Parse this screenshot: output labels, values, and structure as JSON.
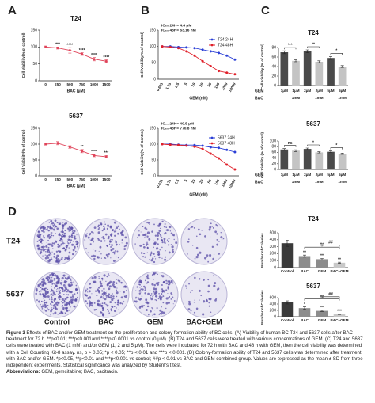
{
  "panel_labels": [
    "A",
    "B",
    "C",
    "D"
  ],
  "chart_data": [
    {
      "type": "line",
      "title": "T24",
      "xlabel": "BAC (μM)",
      "ylabel": "Cell Viability(% of control)",
      "categories": [
        "0",
        "250",
        "500",
        "750",
        "1000",
        "1500"
      ],
      "series": [
        {
          "color": "#e0445a",
          "values": [
            100,
            97,
            90,
            79,
            64,
            58
          ],
          "errors": [
            3,
            3,
            8,
            4,
            5,
            4
          ]
        }
      ],
      "ylim": [
        0,
        150
      ],
      "yticks": [
        0,
        50,
        100,
        150
      ],
      "point_labels": [
        null,
        "***",
        "****",
        "****",
        "****",
        "****"
      ]
    },
    {
      "type": "line",
      "title": "5637",
      "xlabel": "BAC (μM)",
      "ylabel": "Cell Viability(% of control)",
      "categories": [
        "0",
        "250",
        "500",
        "750",
        "1000",
        "1500"
      ],
      "series": [
        {
          "color": "#e0445a",
          "values": [
            100,
            103,
            91,
            78,
            64,
            60
          ],
          "errors": [
            3,
            5,
            4,
            5,
            4,
            4
          ]
        }
      ],
      "ylim": [
        0,
        150
      ],
      "yticks": [
        0,
        50,
        100,
        150
      ],
      "point_labels": [
        null,
        null,
        null,
        "**",
        "****",
        "***"
      ]
    },
    {
      "type": "line",
      "xlabel": "GEM (nM)",
      "ylabel": "Cell Viability(% of Control)",
      "annotations": [
        "IC₅₀ 24H= 4.4 μM",
        "IC₅₀ 48H= 63.16 nM"
      ],
      "categories": [
        "0.625",
        "1.25",
        "2.5",
        "5",
        "10",
        "20",
        "50",
        "100",
        "1000",
        "10000"
      ],
      "series": [
        {
          "name": "T24 24H",
          "color": "#2b3fd6",
          "values": [
            100,
            100,
            98,
            97,
            95,
            90,
            85,
            80,
            72,
            60
          ]
        },
        {
          "name": "T24 48H",
          "color": "#e0202a",
          "values": [
            100,
            98,
            95,
            85,
            72,
            55,
            40,
            25,
            20,
            15
          ]
        }
      ],
      "ylim": [
        0,
        150
      ],
      "yticks": [
        0,
        50,
        100,
        150
      ]
    },
    {
      "type": "line",
      "xlabel": "GEM (nM)",
      "ylabel": "Cell Viability(% of Control)",
      "annotations": [
        "IC₅₀ 24H= 40.5 μM",
        "IC₅₀ 48H= 770.8 nM"
      ],
      "categories": [
        "0.625",
        "1.25",
        "2.5",
        "5",
        "10",
        "20",
        "50",
        "100",
        "1000",
        "10000"
      ],
      "series": [
        {
          "name": "5637 24H",
          "color": "#2b3fd6",
          "values": [
            100,
            100,
            98,
            97,
            97,
            95,
            90,
            88,
            82,
            75
          ]
        },
        {
          "name": "5637 48H",
          "color": "#e0202a",
          "values": [
            100,
            98,
            97,
            95,
            92,
            85,
            70,
            55,
            35,
            20
          ]
        }
      ],
      "ylim": [
        0,
        150
      ],
      "yticks": [
        0,
        50,
        100,
        150
      ]
    },
    {
      "type": "bar",
      "title": "T24",
      "ylabel": "Cell Viability (% of control)",
      "categories": [
        "1μM",
        "1μM",
        "2μM",
        "2μM",
        "5μM",
        "5μM"
      ],
      "rows": [
        {
          "name": "GEM",
          "labels": [
            "1μM",
            "1μM",
            "2μM",
            "2μM",
            "5μM",
            "5μM"
          ]
        },
        {
          "name": "BAC",
          "labels": [
            null,
            "1mM",
            null,
            "1mM",
            null,
            "1mM"
          ]
        }
      ],
      "colors": [
        "#4a4a4a",
        "#c4c4c4",
        "#4a4a4a",
        "#c4c4c4",
        "#4a4a4a",
        "#c4c4c4"
      ],
      "series": [
        {
          "values": [
            70,
            52,
            72,
            50,
            58,
            40
          ],
          "errors": [
            3,
            2,
            3,
            2,
            3,
            2
          ]
        }
      ],
      "ylim": [
        0,
        80
      ],
      "yticks": [
        0,
        20,
        40,
        60,
        80
      ],
      "bracket_labels": [
        "***",
        "**",
        "*"
      ]
    },
    {
      "type": "bar",
      "title": "5637",
      "ylabel": "Cell Viability (% of control)",
      "categories": [
        "1μM",
        "1μM",
        "2μM",
        "2μM",
        "5μM",
        "5μM"
      ],
      "rows": [
        {
          "name": "GEM",
          "labels": [
            "1μM",
            "1μM",
            "2μM",
            "2μM",
            "5μM",
            "5μM"
          ]
        },
        {
          "name": "BAC",
          "labels": [
            null,
            "1mM",
            null,
            "1mM",
            null,
            "1mM"
          ]
        }
      ],
      "colors": [
        "#4a4a4a",
        "#c4c4c4",
        "#4a4a4a",
        "#c4c4c4",
        "#4a4a4a",
        "#c4c4c4"
      ],
      "series": [
        {
          "values": [
            70,
            66,
            72,
            60,
            62,
            55
          ],
          "errors": [
            3,
            3,
            3,
            2,
            3,
            2
          ]
        }
      ],
      "ylim": [
        0,
        100
      ],
      "yticks": [
        0,
        20,
        40,
        60,
        80,
        100
      ],
      "bracket_labels": [
        "ns",
        "*",
        "*"
      ]
    },
    {
      "type": "bar",
      "title": "T24",
      "ylabel": "Number of Colonies",
      "categories": [
        "Control",
        "BAC",
        "GEM",
        "BAC+GEM"
      ],
      "colors": [
        "#3a3a3a",
        "#8c8c8c",
        "#8c8c8c",
        "#c8c8c8"
      ],
      "series": [
        {
          "values": [
            350,
            165,
            120,
            70
          ],
          "errors": [
            45,
            15,
            12,
            8
          ]
        }
      ],
      "ylim": [
        0,
        500
      ],
      "yticks": [
        0,
        100,
        200,
        300,
        400,
        500
      ],
      "point_labels": [
        null,
        "**",
        "**",
        "**"
      ],
      "bracket_labels": [
        "##",
        "##"
      ]
    },
    {
      "type": "bar",
      "title": "5637",
      "ylabel": "Number of Colonies",
      "categories": [
        "Control",
        "BAC",
        "GEM",
        "BAC+GEM"
      ],
      "colors": [
        "#3a3a3a",
        "#8c8c8c",
        "#8c8c8c",
        "#c8c8c8"
      ],
      "series": [
        {
          "values": [
            450,
            270,
            185,
            80
          ],
          "errors": [
            50,
            40,
            20,
            10
          ]
        }
      ],
      "ylim": [
        0,
        600
      ],
      "yticks": [
        0,
        200,
        400,
        600
      ],
      "point_labels": [
        null,
        "*",
        "**",
        "***"
      ],
      "bracket_labels": [
        "##",
        "##"
      ]
    }
  ],
  "colony_images": {
    "columns": [
      "Control",
      "BAC",
      "GEM",
      "BAC+GEM"
    ],
    "rows": [
      "T24",
      "5637"
    ]
  },
  "caption": {
    "label": "Figure 3",
    "text": "Effects of BAC and/or GEM treatment on the proliferation and colony formation ability of BC cells. (A) Viability of human BC T24 and 5637 cells after BAC treatment for 72 h. **p<0.01; ***p<0.001and ****p<0.0001 vs control (0 μM). (B) T24 and 5637 cells were treated with various concentrations of GEM. (C) T24 and 5637 cells were treated with BAC (1 mM) and/or GEM (1, 2 and 5 μM). The cells were incubated for 72 h with BAC and 48 h with GEM, then the cell viability was determined with a Cell Counting Kit-8 assay. ns, p > 0.05; *p < 0.05; **p < 0.01 and ***p < 0.001. (D) Colony-formation ability of T24 and 5637 cells was determined after treatment with BAC and/or GEM. *p<0.05, **p<0.01 and ***p<0.001 vs control; ##p < 0.01 vs BAC and GEM combined group. Values are expressed as the mean ± SD from three independent experiments. Statistical significance was analyzed by Student's t test.",
    "abbrev_label": "Abbreviations:",
    "abbrev_text": "GEM, gemcitabine; BAC, bacitracin."
  }
}
